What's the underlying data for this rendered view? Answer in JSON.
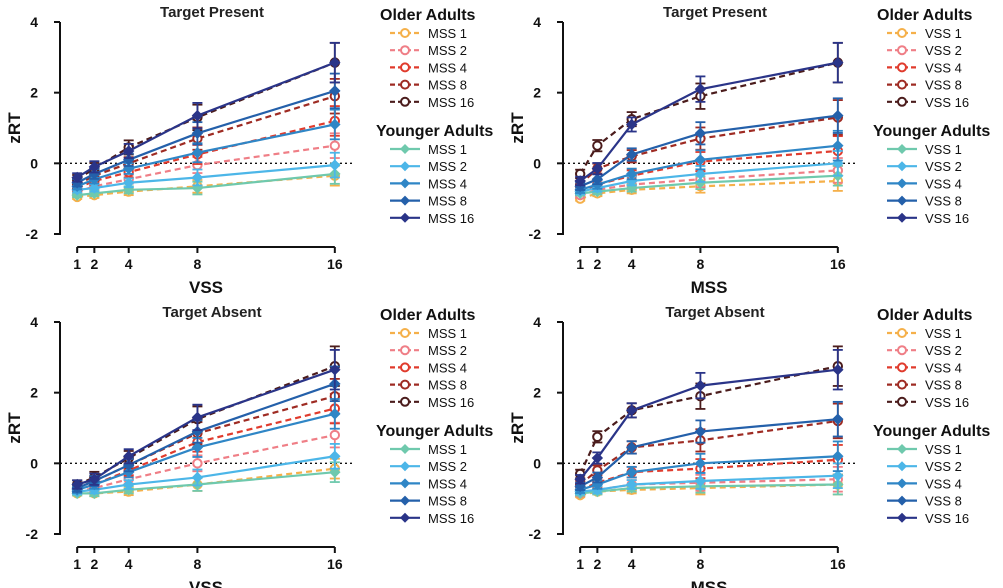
{
  "chart_data": [
    {
      "type": "line",
      "title": "Target Present",
      "xlabel": "VSS",
      "ylabel": "zRT",
      "x": [
        1,
        2,
        4,
        8,
        16
      ],
      "xlim": [
        0,
        17
      ],
      "ylim": [
        -2,
        4
      ],
      "yticks": [
        -2,
        0,
        2,
        4
      ],
      "legend_groups": [
        {
          "title": "Older Adults",
          "series": [
            {
              "name": "MSS 1",
              "color": "#f5b04a",
              "values": [
                -0.95,
                -0.9,
                -0.8,
                -0.65,
                -0.35
              ]
            },
            {
              "name": "MSS 2",
              "color": "#ef7e86",
              "values": [
                -0.8,
                -0.65,
                -0.45,
                -0.05,
                0.5
              ]
            },
            {
              "name": "MSS 4",
              "color": "#e03b2d",
              "values": [
                -0.7,
                -0.5,
                -0.25,
                0.25,
                1.2
              ]
            },
            {
              "name": "MSS 8",
              "color": "#9e2b23",
              "values": [
                -0.6,
                -0.35,
                0.0,
                0.7,
                1.9
              ]
            },
            {
              "name": "MSS 16",
              "color": "#4b1c1c",
              "values": [
                -0.45,
                -0.15,
                0.45,
                1.3,
                2.85
              ]
            }
          ]
        },
        {
          "title": "Younger Adults",
          "series": [
            {
              "name": "MSS 1",
              "color": "#6fc9ad",
              "values": [
                -0.9,
                -0.85,
                -0.75,
                -0.7,
                -0.3
              ]
            },
            {
              "name": "MSS 2",
              "color": "#4cb6e8",
              "values": [
                -0.75,
                -0.7,
                -0.55,
                -0.4,
                -0.05
              ]
            },
            {
              "name": "MSS 4",
              "color": "#2f86c6",
              "values": [
                -0.65,
                -0.45,
                -0.15,
                0.3,
                1.1
              ]
            },
            {
              "name": "MSS 8",
              "color": "#2460aa",
              "values": [
                -0.55,
                -0.3,
                0.1,
                0.85,
                2.05
              ]
            },
            {
              "name": "MSS 16",
              "color": "#2a3488",
              "values": [
                -0.4,
                -0.1,
                0.35,
                1.35,
                2.85
              ]
            }
          ]
        }
      ]
    },
    {
      "type": "line",
      "title": "Target Present",
      "xlabel": "MSS",
      "ylabel": "zRT",
      "x": [
        1,
        2,
        4,
        8,
        16
      ],
      "xlim": [
        0,
        17
      ],
      "ylim": [
        -2,
        4
      ],
      "yticks": [
        -2,
        0,
        2,
        4
      ],
      "legend_groups": [
        {
          "title": "Older Adults",
          "series": [
            {
              "name": "VSS 1",
              "color": "#f5b04a",
              "values": [
                -1.0,
                -0.85,
                -0.75,
                -0.65,
                -0.5
              ]
            },
            {
              "name": "VSS 2",
              "color": "#ef7e86",
              "values": [
                -0.9,
                -0.75,
                -0.6,
                -0.45,
                -0.2
              ]
            },
            {
              "name": "VSS 4",
              "color": "#e03b2d",
              "values": [
                -0.8,
                -0.6,
                -0.35,
                0.05,
                0.35
              ]
            },
            {
              "name": "VSS 8",
              "color": "#9e2b23",
              "values": [
                -0.6,
                -0.15,
                0.2,
                0.7,
                1.3
              ]
            },
            {
              "name": "VSS 16",
              "color": "#4b1c1c",
              "values": [
                -0.3,
                0.5,
                1.25,
                1.9,
                2.85
              ]
            }
          ]
        },
        {
          "title": "Younger Adults",
          "series": [
            {
              "name": "VSS 1",
              "color": "#6fc9ad",
              "values": [
                -0.85,
                -0.8,
                -0.7,
                -0.55,
                -0.35
              ]
            },
            {
              "name": "VSS 2",
              "color": "#4cb6e8",
              "values": [
                -0.8,
                -0.7,
                -0.5,
                -0.3,
                0.0
              ]
            },
            {
              "name": "VSS 4",
              "color": "#2f86c6",
              "values": [
                -0.75,
                -0.6,
                -0.3,
                0.1,
                0.5
              ]
            },
            {
              "name": "VSS 8",
              "color": "#2460aa",
              "values": [
                -0.65,
                -0.45,
                0.25,
                0.85,
                1.35
              ]
            },
            {
              "name": "VSS 16",
              "color": "#2a3488",
              "values": [
                -0.5,
                -0.15,
                1.1,
                2.1,
                2.85
              ]
            }
          ]
        }
      ]
    },
    {
      "type": "line",
      "title": "Target Absent",
      "xlabel": "VSS",
      "ylabel": "zRT",
      "x": [
        1,
        2,
        4,
        8,
        16
      ],
      "xlim": [
        0,
        17
      ],
      "ylim": [
        -2,
        4
      ],
      "yticks": [
        -2,
        0,
        2,
        4
      ],
      "legend_groups": [
        {
          "title": "Older Adults",
          "series": [
            {
              "name": "MSS 1",
              "color": "#f5b04a",
              "values": [
                -0.85,
                -0.85,
                -0.8,
                -0.6,
                -0.15
              ]
            },
            {
              "name": "MSS 2",
              "color": "#ef7e86",
              "values": [
                -0.8,
                -0.7,
                -0.45,
                0.0,
                0.8
              ]
            },
            {
              "name": "MSS 4",
              "color": "#e03b2d",
              "values": [
                -0.75,
                -0.6,
                -0.2,
                0.6,
                1.55
              ]
            },
            {
              "name": "MSS 8",
              "color": "#9e2b23",
              "values": [
                -0.7,
                -0.5,
                -0.05,
                0.85,
                1.9
              ]
            },
            {
              "name": "MSS 16",
              "color": "#4b1c1c",
              "values": [
                -0.6,
                -0.4,
                0.15,
                1.25,
                2.75
              ]
            }
          ]
        },
        {
          "title": "Younger Adults",
          "series": [
            {
              "name": "MSS 1",
              "color": "#6fc9ad",
              "values": [
                -0.85,
                -0.85,
                -0.75,
                -0.6,
                -0.25
              ]
            },
            {
              "name": "MSS 2",
              "color": "#4cb6e8",
              "values": [
                -0.8,
                -0.75,
                -0.6,
                -0.4,
                0.2
              ]
            },
            {
              "name": "MSS 4",
              "color": "#2f86c6",
              "values": [
                -0.75,
                -0.6,
                -0.25,
                0.45,
                1.4
              ]
            },
            {
              "name": "MSS 8",
              "color": "#2460aa",
              "values": [
                -0.7,
                -0.5,
                -0.05,
                0.9,
                2.25
              ]
            },
            {
              "name": "MSS 16",
              "color": "#2a3488",
              "values": [
                -0.6,
                -0.45,
                0.2,
                1.3,
                2.65
              ]
            }
          ]
        }
      ]
    },
    {
      "type": "line",
      "title": "Target Absent",
      "xlabel": "MSS",
      "ylabel": "zRT",
      "x": [
        1,
        2,
        4,
        8,
        16
      ],
      "xlim": [
        0,
        17
      ],
      "ylim": [
        -2,
        4
      ],
      "yticks": [
        -2,
        0,
        2,
        4
      ],
      "legend_groups": [
        {
          "title": "Older Adults",
          "series": [
            {
              "name": "VSS 1",
              "color": "#f5b04a",
              "values": [
                -0.9,
                -0.8,
                -0.75,
                -0.7,
                -0.6
              ]
            },
            {
              "name": "VSS 2",
              "color": "#ef7e86",
              "values": [
                -0.85,
                -0.75,
                -0.6,
                -0.55,
                -0.45
              ]
            },
            {
              "name": "VSS 4",
              "color": "#e03b2d",
              "values": [
                -0.75,
                -0.55,
                -0.25,
                -0.15,
                0.1
              ]
            },
            {
              "name": "VSS 8",
              "color": "#9e2b23",
              "values": [
                -0.6,
                -0.2,
                0.45,
                0.65,
                1.2
              ]
            },
            {
              "name": "VSS 16",
              "color": "#4b1c1c",
              "values": [
                -0.3,
                0.75,
                1.5,
                1.9,
                2.75
              ]
            }
          ]
        },
        {
          "title": "Younger Adults",
          "series": [
            {
              "name": "VSS 1",
              "color": "#6fc9ad",
              "values": [
                -0.85,
                -0.8,
                -0.7,
                -0.65,
                -0.6
              ]
            },
            {
              "name": "VSS 2",
              "color": "#4cb6e8",
              "values": [
                -0.8,
                -0.75,
                -0.6,
                -0.5,
                -0.35
              ]
            },
            {
              "name": "VSS 4",
              "color": "#2f86c6",
              "values": [
                -0.75,
                -0.6,
                -0.25,
                0.0,
                0.2
              ]
            },
            {
              "name": "VSS 8",
              "color": "#2460aa",
              "values": [
                -0.65,
                -0.4,
                0.45,
                0.9,
                1.25
              ]
            },
            {
              "name": "VSS 16",
              "color": "#2a3488",
              "values": [
                -0.45,
                0.15,
                1.5,
                2.2,
                2.65
              ]
            }
          ]
        }
      ]
    }
  ]
}
